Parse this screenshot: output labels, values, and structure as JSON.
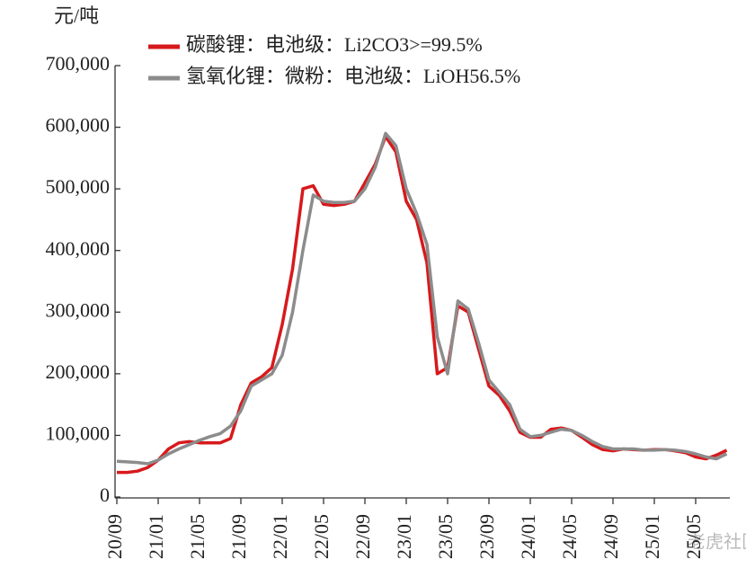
{
  "chart_data": {
    "type": "line",
    "y_label": "元/吨",
    "watermark": "老虎社区",
    "categories": [
      "20/09",
      null,
      null,
      null,
      "21/01",
      null,
      null,
      null,
      "21/05",
      null,
      null,
      null,
      "21/09",
      null,
      null,
      null,
      "22/01",
      null,
      null,
      null,
      "22/05",
      null,
      null,
      null,
      "22/09",
      null,
      null,
      null,
      "23/01",
      null,
      null,
      null,
      "23/05",
      null,
      null,
      null,
      "23/09",
      null,
      null,
      null,
      "24/01",
      null,
      null,
      null,
      "24/05",
      null,
      null,
      null,
      "24/09",
      null,
      null,
      null,
      "25/01",
      null,
      null,
      null,
      "25/05",
      null,
      null,
      null
    ],
    "series": [
      {
        "name": "碳酸锂：电池级：Li2CO3>=99.5%",
        "color": "#d7191c",
        "values": [
          40000,
          40000,
          42000,
          48000,
          60000,
          78000,
          88000,
          90000,
          88000,
          88000,
          88000,
          95000,
          150000,
          185000,
          195000,
          210000,
          280000,
          370000,
          500000,
          505000,
          475000,
          473000,
          475000,
          480000,
          510000,
          540000,
          585000,
          560000,
          480000,
          450000,
          380000,
          200000,
          210000,
          310000,
          300000,
          240000,
          180000,
          165000,
          140000,
          105000,
          97000,
          97000,
          110000,
          112000,
          108000,
          97000,
          85000,
          77000,
          75000,
          78000,
          77000,
          76000,
          77000,
          77000,
          75000,
          72000,
          65000,
          62000,
          68000,
          76000
        ]
      },
      {
        "name": "氢氧化锂：微粉：电池级：LiOH56.5%",
        "color": "#8c8c8c",
        "values": [
          58000,
          57000,
          56000,
          54000,
          60000,
          70000,
          78000,
          85000,
          92000,
          98000,
          103000,
          115000,
          140000,
          180000,
          190000,
          200000,
          230000,
          300000,
          400000,
          490000,
          480000,
          478000,
          478000,
          480000,
          500000,
          535000,
          590000,
          570000,
          500000,
          460000,
          410000,
          260000,
          200000,
          318000,
          305000,
          250000,
          190000,
          170000,
          150000,
          110000,
          98000,
          100000,
          105000,
          110000,
          108000,
          100000,
          90000,
          82000,
          78000,
          78000,
          78000,
          76000,
          76000,
          77000,
          76000,
          74000,
          70000,
          65000,
          62000,
          70000
        ]
      }
    ],
    "ylim": [
      0,
      700000
    ],
    "yticks": [
      0,
      {
        "value": 100000,
        "label": "100,000"
      },
      {
        "value": 200000,
        "label": "200,000"
      },
      {
        "value": 300000,
        "label": "300,000"
      },
      {
        "value": 400000,
        "label": "400,000"
      },
      {
        "value": 500000,
        "label": "500,000"
      },
      {
        "value": 600000,
        "label": "600,000"
      },
      {
        "value": 700000,
        "label": "700,000"
      }
    ]
  }
}
